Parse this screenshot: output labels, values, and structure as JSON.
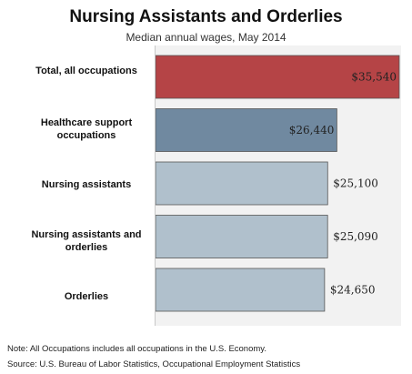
{
  "chart_data": {
    "type": "bar",
    "orientation": "horizontal",
    "title": "Nursing Assistants and Orderlies",
    "subtitle": "Median annual wages, May 2014",
    "categories": [
      "Total, all occupations",
      "Healthcare support occupations",
      "Nursing assistants",
      "Nursing assistants and orderlies",
      "Orderlies"
    ],
    "values": [
      35540,
      26440,
      25100,
      25090,
      24650
    ],
    "value_labels": [
      "$35,540",
      "$26,440",
      "$25,100",
      "$25,090",
      "$24,650"
    ],
    "bar_colors": [
      "#b54446",
      "#7089a0",
      "#b0c0cc",
      "#b0c0cc",
      "#b0c0cc"
    ],
    "xlim": [
      0,
      35540
    ],
    "grid": false,
    "legend": "none"
  },
  "notes": {
    "note": "Note: All Occupations includes all occupations in the U.S. Economy.",
    "source": "Source: U.S. Bureau of Labor Statistics, Occupational Employment Statistics"
  }
}
